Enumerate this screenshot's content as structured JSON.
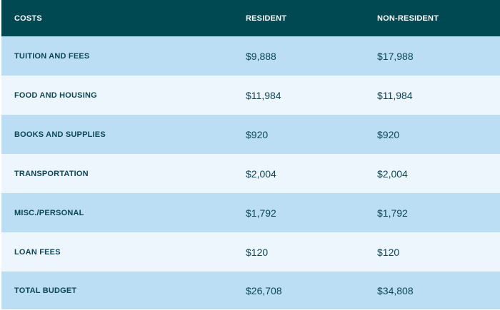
{
  "table": {
    "headers": [
      "COSTS",
      "RESIDENT",
      "NON-RESIDENT"
    ],
    "rows": [
      {
        "label": "TUITION AND FEES",
        "resident": "$9,888",
        "non_resident": "$17,988"
      },
      {
        "label": "FOOD AND HOUSING",
        "resident": "$11,984",
        "non_resident": "$11,984"
      },
      {
        "label": "BOOKS AND SUPPLIES",
        "resident": "$920",
        "non_resident": "$920"
      },
      {
        "label": "TRANSPORTATION",
        "resident": "$2,004",
        "non_resident": "$2,004"
      },
      {
        "label": "MISC./PERSONAL",
        "resident": "$1,792",
        "non_resident": "$1,792"
      },
      {
        "label": "LOAN FEES",
        "resident": "$120",
        "non_resident": "$120"
      },
      {
        "label": "TOTAL BUDGET",
        "resident": "$26,708",
        "non_resident": "$34,808"
      }
    ]
  },
  "colors": {
    "header_bg": "#004852",
    "row_dark": "#bbdef5",
    "row_light": "#eef6fd",
    "text": "#0b4656"
  }
}
